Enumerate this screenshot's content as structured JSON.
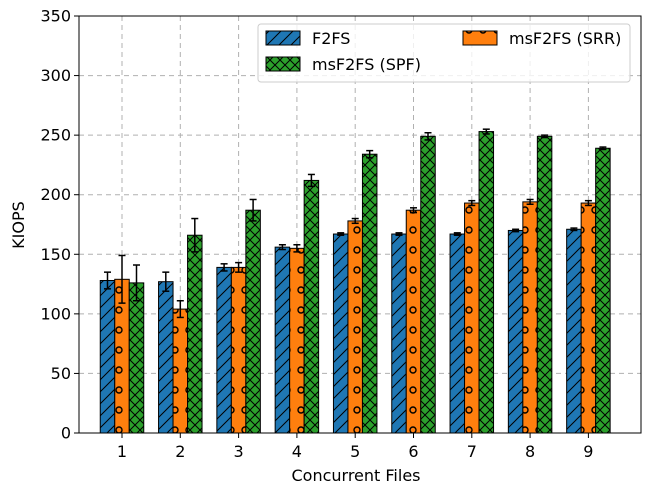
{
  "chart_data": {
    "type": "bar",
    "categories": [
      "1",
      "2",
      "3",
      "4",
      "5",
      "6",
      "7",
      "8",
      "9"
    ],
    "series": [
      {
        "name": "F2FS",
        "color": "#1f77b4",
        "pattern": "diagonal-hatch",
        "values": [
          128,
          127,
          139,
          156,
          167,
          167,
          167,
          170,
          171
        ],
        "errors": [
          7,
          8,
          3,
          2,
          1,
          1,
          1,
          1,
          1
        ]
      },
      {
        "name": "msF2FS (SRR)",
        "color": "#ff7f0e",
        "pattern": "circles",
        "values": [
          129,
          104,
          139,
          155,
          178,
          187,
          193,
          194,
          193
        ],
        "errors": [
          20,
          7,
          4,
          3,
          2,
          2,
          2,
          2,
          2
        ]
      },
      {
        "name": "msF2FS (SPF)",
        "color": "#2ca02c",
        "pattern": "cross-hatch",
        "values": [
          126,
          166,
          187,
          212,
          234,
          249,
          253,
          249,
          239
        ],
        "errors": [
          15,
          14,
          9,
          5,
          3,
          3,
          2,
          1,
          1
        ]
      }
    ],
    "xlabel": "Concurrent Files",
    "ylabel": "KIOPS",
    "ylim": [
      0,
      350
    ],
    "yticks": [
      0,
      50,
      100,
      150,
      200,
      250,
      300,
      350
    ],
    "grid": true,
    "legend_position": "top-right"
  }
}
